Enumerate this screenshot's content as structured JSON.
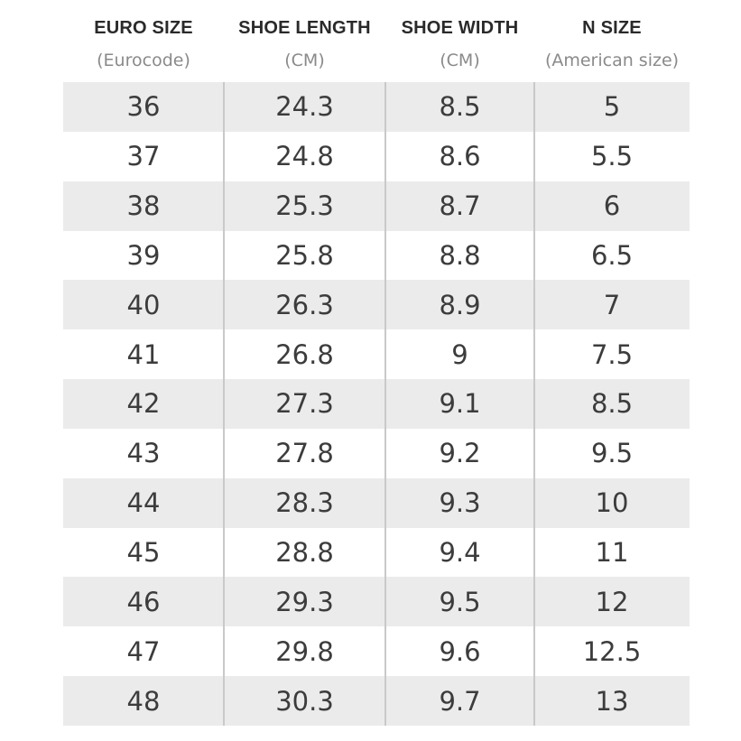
{
  "headers": [
    {
      "title": "EURO SIZE",
      "subtitle": "(Eurocode)"
    },
    {
      "title": "SHOE LENGTH",
      "subtitle": "(CM)"
    },
    {
      "title": "SHOE WIDTH",
      "subtitle": "(CM)"
    },
    {
      "title": "N SIZE",
      "subtitle": "(American size)"
    }
  ],
  "rows": [
    [
      "36",
      "24.3",
      "8.5",
      "5"
    ],
    [
      "37",
      "24.8",
      "8.6",
      "5.5"
    ],
    [
      "38",
      "25.3",
      "8.7",
      "6"
    ],
    [
      "39",
      "25.8",
      "8.8",
      "6.5"
    ],
    [
      "40",
      "26.3",
      "8.9",
      "7"
    ],
    [
      "41",
      "26.8",
      "9",
      "7.5"
    ],
    [
      "42",
      "27.3",
      "9.1",
      "8.5"
    ],
    [
      "43",
      "27.8",
      "9.2",
      "9.5"
    ],
    [
      "44",
      "28.3",
      "9.3",
      "10"
    ],
    [
      "45",
      "28.8",
      "9.4",
      "11"
    ],
    [
      "46",
      "29.3",
      "9.5",
      "12"
    ],
    [
      "47",
      "29.8",
      "9.6",
      "12.5"
    ],
    [
      "48",
      "30.3",
      "9.7",
      "13"
    ]
  ],
  "colors": {
    "shade": "#ebebeb",
    "text": "#3c3c3c",
    "header": "#2a2a2a",
    "subheader": "#8a8a8a",
    "divider": "#c9c9c9"
  }
}
